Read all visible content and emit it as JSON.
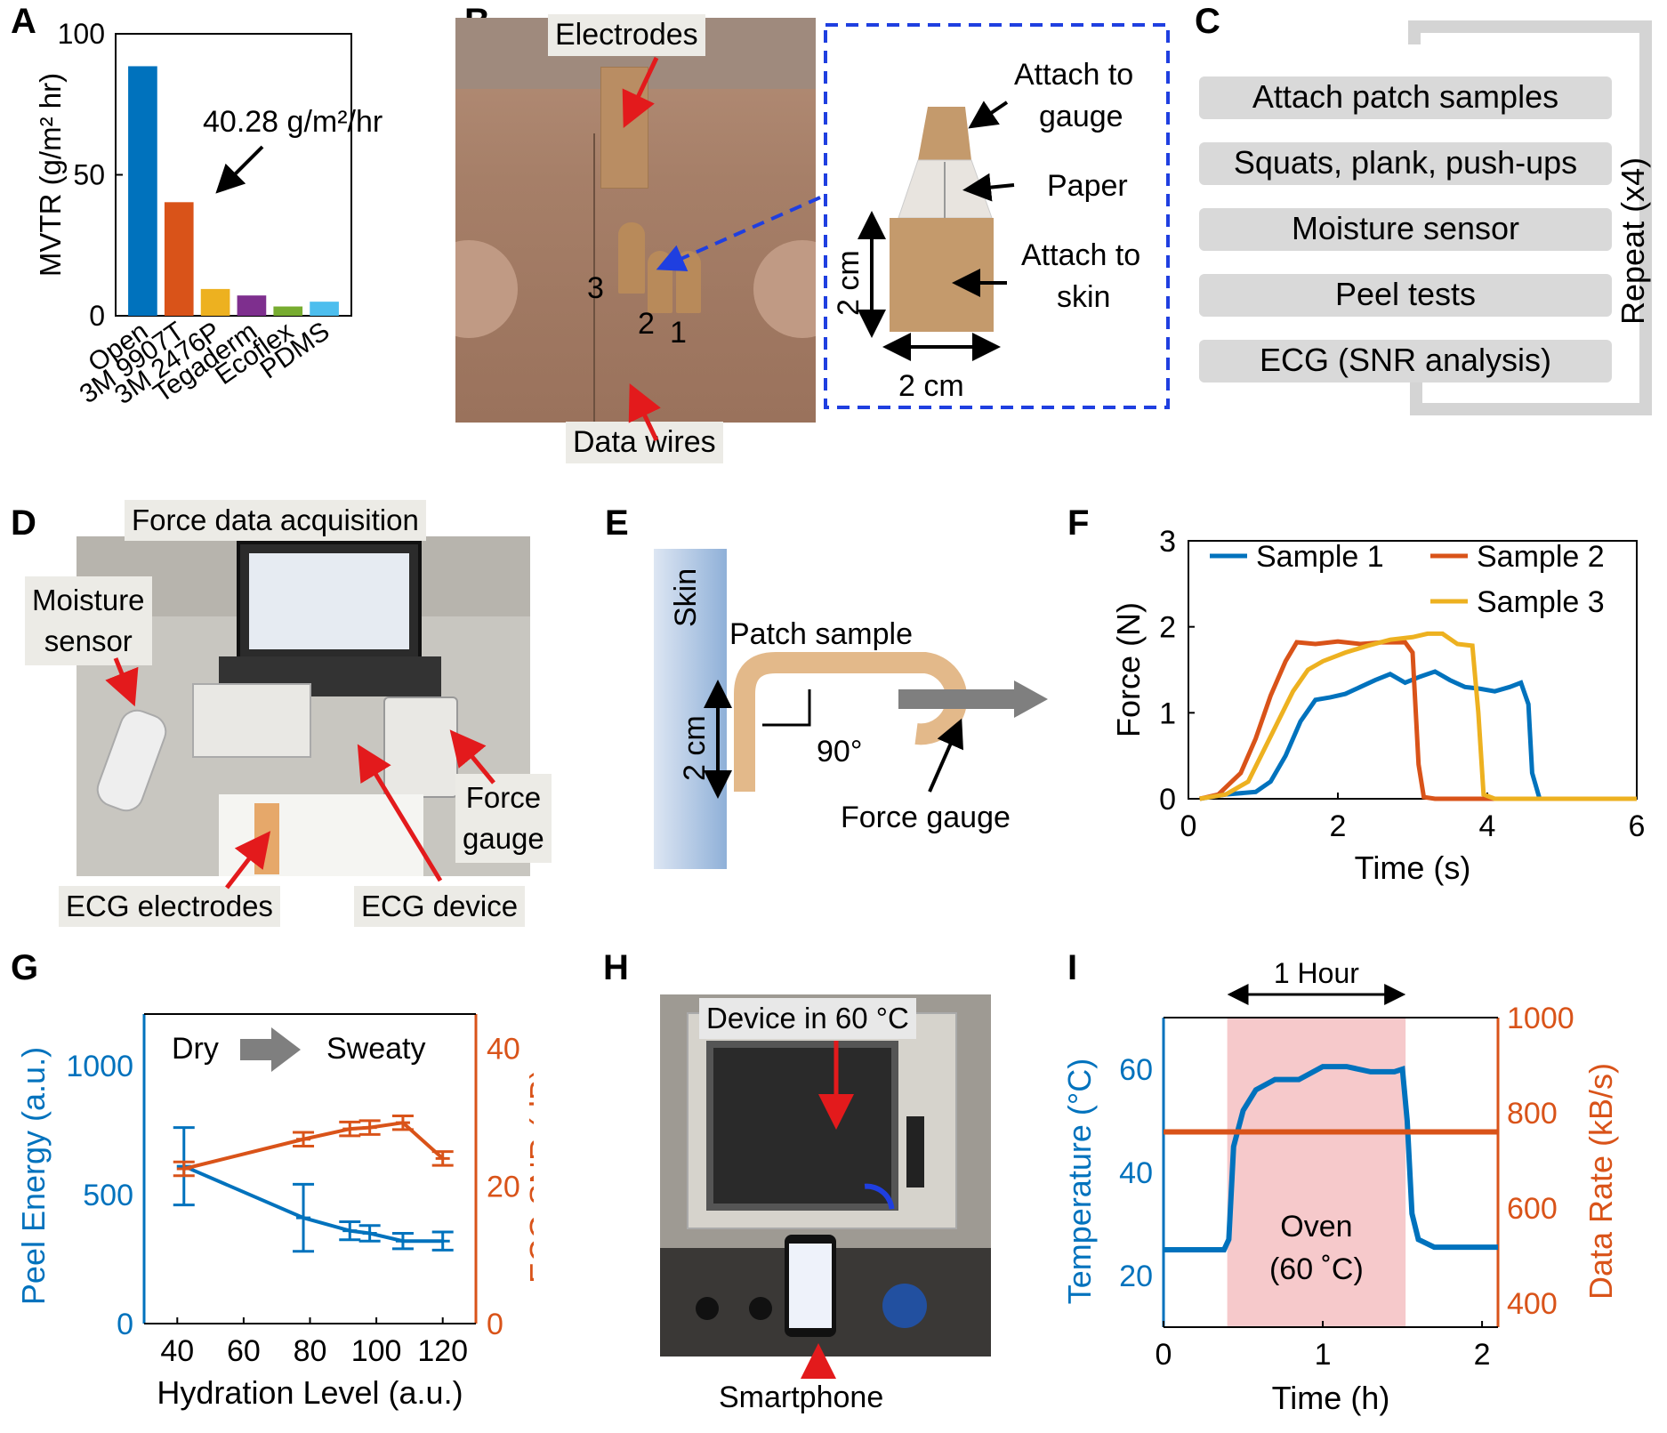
{
  "panels": {
    "A": {
      "label": "A",
      "callout": "40.28 g/m²/hr",
      "chart_data": {
        "type": "bar",
        "ylabel": "MVTR (g/m² hr)",
        "ylim": [
          0,
          100
        ],
        "yticks": [
          0,
          50,
          100
        ],
        "categories": [
          "Open",
          "3M 9907T",
          "3M 2476P",
          "Tegaderm",
          "Ecoflex",
          "PDMS"
        ],
        "values": [
          88.5,
          40.28,
          9.5,
          7.2,
          3.3,
          5.0
        ],
        "colors": [
          "#0072bd",
          "#d95319",
          "#edb120",
          "#7e2f8e",
          "#77ac30",
          "#4dbeee"
        ]
      }
    },
    "B": {
      "label": "B",
      "electrodes": "Electrodes",
      "data_wires": "Data wires",
      "nums": [
        "3",
        "2",
        "1"
      ],
      "attach_gauge_1": "Attach to",
      "attach_gauge_2": "gauge",
      "paper": "Paper",
      "attach_skin_1": "Attach to",
      "attach_skin_2": "skin",
      "dim_v": "2 cm",
      "dim_h": "2 cm"
    },
    "C": {
      "label": "C",
      "steps": [
        "Attach patch samples",
        "Squats, plank, push-ups",
        "Moisture sensor",
        "Peel tests",
        "ECG (SNR analysis)"
      ],
      "repeat": "Repeat (x4)"
    },
    "D": {
      "label": "D",
      "force_daq": "Force data acquisition",
      "moisture_1": "Moisture",
      "moisture_2": "sensor",
      "force_gauge_1": "Force",
      "force_gauge_2": "gauge",
      "ecg_electrodes": "ECG electrodes",
      "ecg_device": "ECG device"
    },
    "E": {
      "label": "E",
      "skin": "Skin",
      "patch": "Patch sample",
      "dim": "2 cm",
      "angle": "90°",
      "gauge": "Force gauge"
    },
    "F": {
      "label": "F",
      "chart_data": {
        "type": "line",
        "xlabel": "Time (s)",
        "ylabel": "Force (N)",
        "xlim": [
          0,
          6
        ],
        "ylim": [
          0,
          3
        ],
        "xticks": [
          0,
          2,
          4,
          6
        ],
        "yticks": [
          0,
          1,
          2,
          3
        ],
        "series": [
          {
            "name": "Sample 1",
            "color": "#0072bd",
            "x": [
              0.15,
              0.5,
              0.9,
              1.1,
              1.3,
              1.5,
              1.7,
              1.9,
              2.1,
              2.3,
              2.5,
              2.7,
              2.9,
              3.1,
              3.3,
              3.5,
              3.7,
              3.9,
              4.1,
              4.3,
              4.45,
              4.55,
              4.6,
              4.7,
              5.0,
              5.5,
              6.0
            ],
            "y": [
              0.0,
              0.05,
              0.08,
              0.2,
              0.5,
              0.9,
              1.15,
              1.18,
              1.22,
              1.3,
              1.38,
              1.45,
              1.35,
              1.42,
              1.48,
              1.38,
              1.3,
              1.28,
              1.25,
              1.3,
              1.35,
              1.1,
              0.3,
              0.0,
              0.0,
              0.0,
              0.0
            ]
          },
          {
            "name": "Sample 2",
            "color": "#d95319",
            "x": [
              0.15,
              0.4,
              0.7,
              0.9,
              1.1,
              1.3,
              1.45,
              1.7,
              2.0,
              2.3,
              2.6,
              2.9,
              3.0,
              3.08,
              3.15,
              3.3,
              3.6,
              4.0,
              4.5,
              5.0,
              5.5,
              6.0
            ],
            "y": [
              0.0,
              0.05,
              0.3,
              0.7,
              1.2,
              1.6,
              1.82,
              1.8,
              1.83,
              1.8,
              1.82,
              1.82,
              1.7,
              0.4,
              0.02,
              0.0,
              0.0,
              0.0,
              0.0,
              0.0,
              0.0,
              0.0
            ],
            "label_only": "Sample 2"
          },
          {
            "name": "Sample 3",
            "color": "#edb120",
            "x": [
              0.15,
              0.5,
              0.8,
              1.0,
              1.2,
              1.4,
              1.6,
              1.8,
              2.1,
              2.4,
              2.7,
              3.0,
              3.2,
              3.4,
              3.6,
              3.8,
              3.88,
              3.95,
              4.1,
              4.5,
              5.0,
              5.5,
              6.0
            ],
            "y": [
              0.0,
              0.05,
              0.2,
              0.55,
              0.9,
              1.25,
              1.5,
              1.6,
              1.7,
              1.78,
              1.85,
              1.88,
              1.92,
              1.92,
              1.8,
              1.78,
              1.0,
              0.05,
              0.0,
              0.0,
              0.0,
              0.0,
              0.0
            ]
          }
        ]
      }
    },
    "G": {
      "label": "G",
      "dry": "Dry",
      "sweaty": "Sweaty",
      "chart_data": {
        "type": "line",
        "xlabel": "Hydration Level (a.u.)",
        "ylabel": "Peel Energy (a.u.)",
        "y2label": "ECG SNR (dB)",
        "xlim": [
          30,
          130
        ],
        "ylim": [
          0,
          1200
        ],
        "y2lim": [
          0,
          45
        ],
        "xticks": [
          40,
          60,
          80,
          100,
          120
        ],
        "yticks": [
          0,
          500,
          1000
        ],
        "y2ticks": [
          0,
          20,
          40
        ],
        "series": [
          {
            "name": "Peel Energy",
            "axis": "left",
            "color": "#0072bd",
            "x": [
              42,
              78,
              92,
              98,
              108,
              120
            ],
            "y": [
              610,
              410,
              360,
              350,
              320,
              320
            ],
            "err": [
              150,
              130,
              35,
              30,
              30,
              35
            ]
          },
          {
            "name": "ECG SNR",
            "axis": "right",
            "color": "#d95319",
            "x": [
              42,
              78,
              92,
              98,
              108,
              120
            ],
            "y": [
              22.5,
              26.8,
              28.3,
              28.5,
              29.2,
              24.0
            ],
            "err": [
              1.0,
              1.0,
              1.0,
              1.0,
              1.0,
              1.0
            ]
          }
        ]
      }
    },
    "H": {
      "label": "H",
      "device": "Device in 60 °C",
      "smartphone": "Smartphone"
    },
    "I": {
      "label": "I",
      "hour": "1 Hour",
      "oven_1": "Oven",
      "oven_2": "(60 ˚C)",
      "chart_data": {
        "type": "line",
        "xlabel": "Time (h)",
        "ylabel": "Temperature (°C)",
        "y2label": "Data Rate (kB/s)",
        "xlim": [
          0,
          2.1
        ],
        "ylim": [
          10,
          70
        ],
        "y2lim": [
          350,
          1000
        ],
        "xticks": [
          0,
          1,
          2
        ],
        "yticks": [
          20,
          40,
          60
        ],
        "y2ticks": [
          400,
          600,
          800,
          1000
        ],
        "shaded": [
          0.4,
          1.52
        ],
        "series": [
          {
            "name": "Temperature",
            "axis": "left",
            "color": "#0072bd",
            "x": [
              0.0,
              0.38,
              0.41,
              0.44,
              0.5,
              0.58,
              0.7,
              0.85,
              1.0,
              1.15,
              1.3,
              1.45,
              1.5,
              1.53,
              1.56,
              1.6,
              1.7,
              2.1
            ],
            "y": [
              25,
              25,
              27,
              45,
              52,
              56,
              58,
              58,
              60.5,
              60.5,
              59.5,
              59.5,
              60,
              50,
              32,
              27,
              25.5,
              25.5
            ]
          },
          {
            "name": "Data Rate",
            "axis": "right",
            "color": "#d95319",
            "x": [
              0.0,
              2.1
            ],
            "y": [
              760,
              760
            ]
          }
        ]
      }
    }
  }
}
